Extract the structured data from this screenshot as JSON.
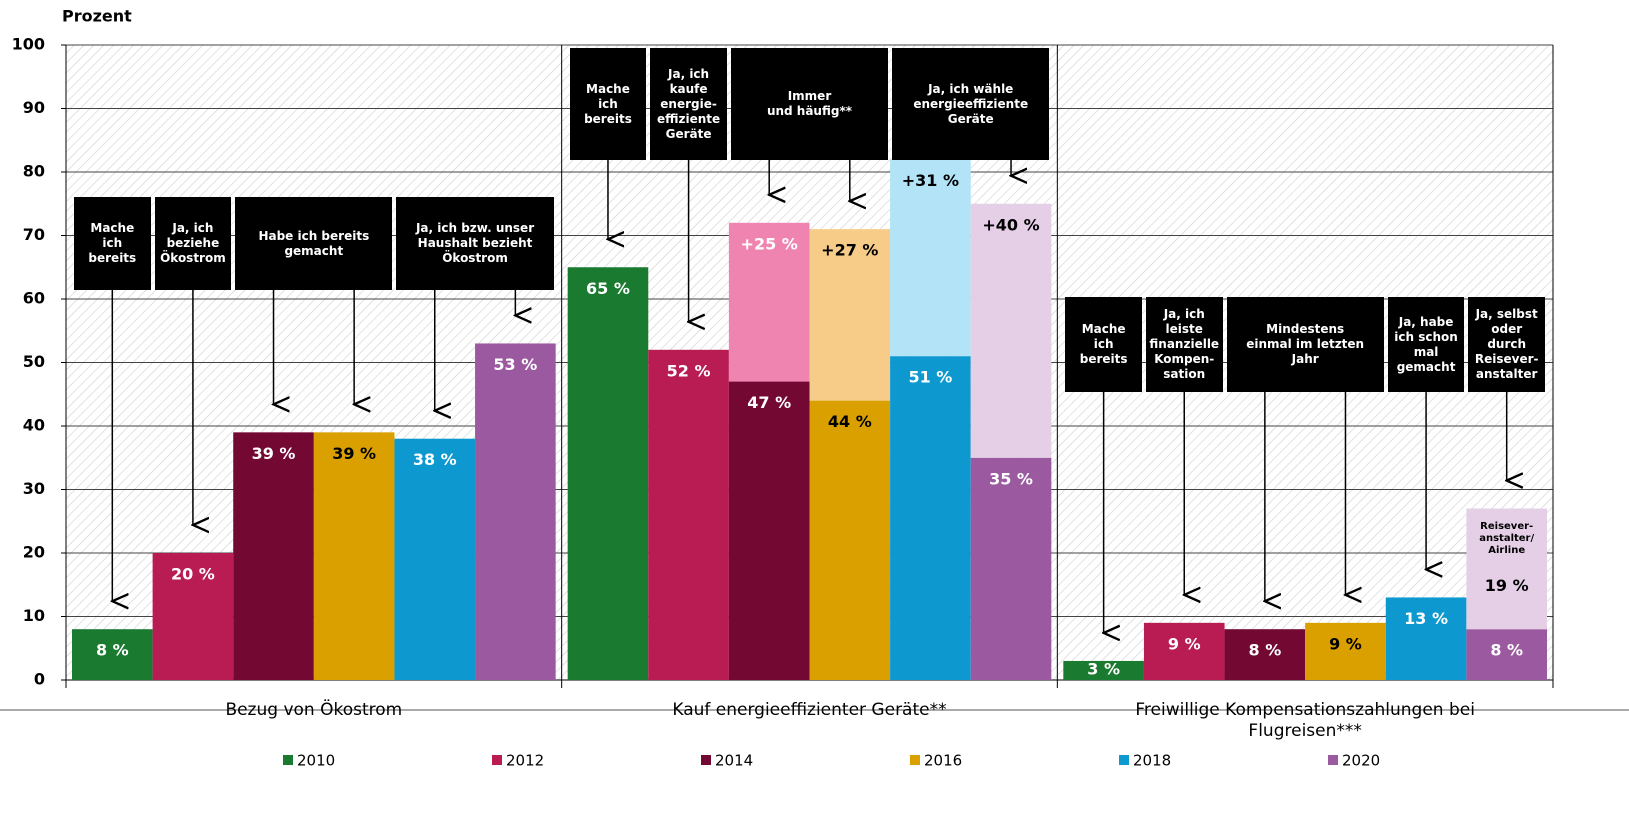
{
  "chart_data": {
    "type": "bar",
    "y_label": "Prozent",
    "categories": [
      "Bezug von Ökostrom",
      "Kauf energieeffizienter Geräte**",
      "Freiwillige Kompensationszahlungen bei Flugreisen***"
    ],
    "ylim": [
      0,
      100
    ],
    "yticks": [
      0,
      10,
      20,
      30,
      40,
      50,
      60,
      70,
      80,
      90,
      100
    ],
    "grid": true,
    "series": [
      {
        "name": "2010",
        "color": "#1a7a30",
        "label_color": "#fff",
        "values": [
          8,
          65,
          3
        ],
        "value_labels": [
          "8 %",
          "65 %",
          "3 %"
        ]
      },
      {
        "name": "2012",
        "color": "#b81c53",
        "label_color": "#fff",
        "values": [
          20,
          52,
          9
        ],
        "value_labels": [
          "20 %",
          "52 %",
          "9 %"
        ]
      },
      {
        "name": "2014",
        "color": "#730833",
        "label_color": "#fff",
        "values": [
          39,
          47,
          8
        ],
        "value_labels": [
          "39 %",
          "47 %",
          "8 %"
        ],
        "extra_color": "#f084b0",
        "extra_label_color": "#fff",
        "extra_values": [
          null,
          25,
          null
        ],
        "extra_value_labels": [
          null,
          "+25 %",
          null
        ]
      },
      {
        "name": "2016",
        "color": "#d9a000",
        "label_color": "#000",
        "values": [
          39,
          44,
          9
        ],
        "value_labels": [
          "39 %",
          "44 %",
          "9 %"
        ],
        "extra_color": "#f6cc88",
        "extra_label_color": "#000",
        "extra_values": [
          null,
          27,
          null
        ],
        "extra_value_labels": [
          null,
          "+27 %",
          null
        ]
      },
      {
        "name": "2018",
        "color": "#0e98d0",
        "label_color": "#fff",
        "values": [
          38,
          51,
          13
        ],
        "value_labels": [
          "38 %",
          "51 %",
          "13 %"
        ],
        "extra_color": "#b3e3f6",
        "extra_label_color": "#000",
        "extra_values": [
          null,
          31,
          null
        ],
        "extra_value_labels": [
          null,
          "+31 %",
          null
        ]
      },
      {
        "name": "2020",
        "color": "#9b5aa0",
        "label_color": "#fff",
        "values": [
          53,
          35,
          8
        ],
        "value_labels": [
          "53 %",
          "35 %",
          "8 %"
        ],
        "extra_color": "#e4cfe7",
        "extra_label_color": "#000",
        "extra_values": [
          null,
          40,
          19
        ],
        "extra_value_labels": [
          null,
          "+40 %",
          "19 %"
        ],
        "extra_notes": [
          null,
          null,
          "Reisever-\nanstalter/\nAirline"
        ]
      }
    ],
    "annotations": [
      [
        "Mache\nich\nbereits",
        "Ja, ich\nbeziehe\nÖkostrom",
        "Habe ich bereits\ngemacht",
        "Ja, ich  bzw. unser\nHaushalt bezieht\nÖkostrom"
      ],
      [
        "Mache\nich\nbereits",
        "Ja, ich\nkaufe\nenergie-\neffiziente\nGeräte",
        "Immer\nund häufig**",
        "Ja, ich wähle\nenergieeffiziente\nGeräte"
      ],
      [
        "Mache\nich\nbereits",
        "Ja, ich\nleiste\nfinanzielle\nKompen-\nsation",
        "Mindestens\neinmal im letzten\nJahr",
        "Ja, habe\nich schon\nmal\ngemacht",
        "Ja,  selbst\noder durch\nReisever-\nanstalter"
      ]
    ]
  }
}
